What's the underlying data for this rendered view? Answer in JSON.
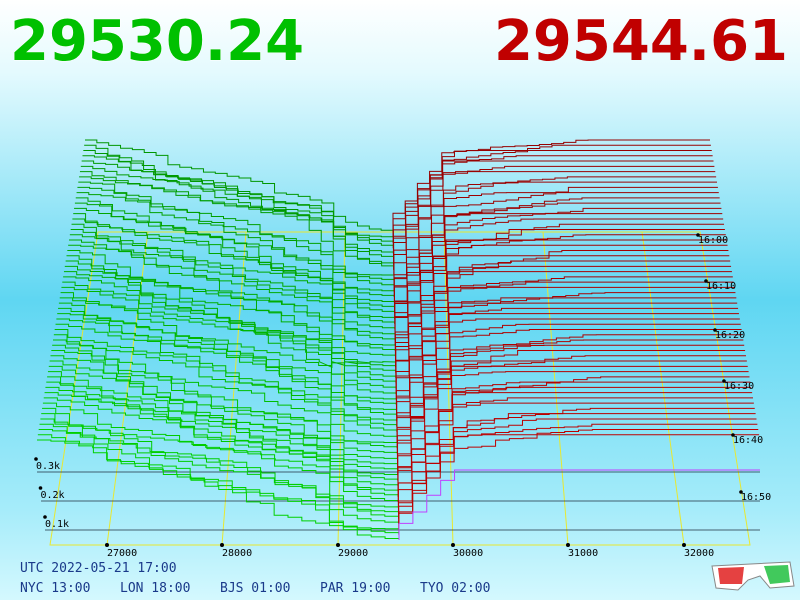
{
  "prices": {
    "bid": "29530.24",
    "ask": "29544.61"
  },
  "price_axis": [
    "27000",
    "28000",
    "29000",
    "30000",
    "31000",
    "32000"
  ],
  "depth_axis": [
    "0.1k",
    "0.2k",
    "0.3k"
  ],
  "time_axis": [
    "16:00",
    "16:10",
    "16:20",
    "16:30",
    "16:40",
    "16:50"
  ],
  "clock": {
    "utc": "UTC 2022-05-21 17:00",
    "cities": [
      "NYC 13:00",
      "LON 18:00",
      "BJS 01:00",
      "PAR 19:00",
      "TYO 02:00"
    ]
  }
}
